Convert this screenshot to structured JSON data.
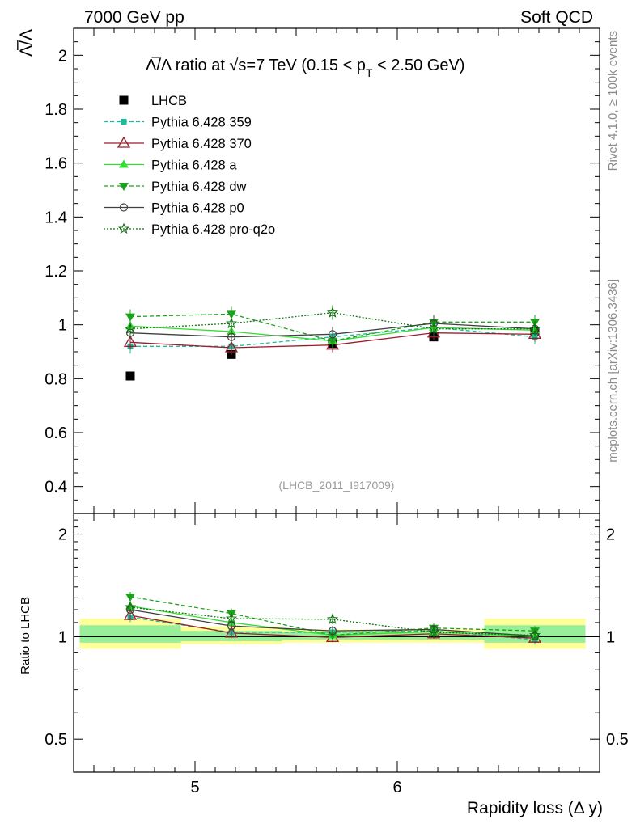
{
  "header": {
    "left": "7000 GeV pp",
    "right": "Soft QCD"
  },
  "side_labels": {
    "rivet": "Rivet 4.1.0, ≥ 100k events",
    "mcplots": "mcplots.cern.ch [arXiv:1306.3436]"
  },
  "colors": {
    "lhcb": "#000000",
    "p359": "#1abc9c",
    "p370": "#9b1c2c",
    "pa": "#33dd33",
    "pdw": "#1aa31a",
    "pp0": "#404040",
    "ppro": "#107010",
    "band_outer": "#ffff99",
    "band_inner": "#99ee99"
  },
  "chart_data": {
    "type": "line",
    "title": "Λ̅/Λ ratio at √s=7 TeV (0.15 < p_T < 2.50 GeV)",
    "title_parts": {
      "main": "Λ̅/Λ ratio at √s=7 TeV (0.15 < p",
      "sub": "T",
      "tail": " < 2.50 GeV)"
    },
    "analysis_id": "(LHCB_2011_I917009)",
    "ylabel_main": "Λ̅/Λ",
    "ylabel_ratio": "Ratio to LHCB",
    "xlabel": "Rapidity loss (Δ y)",
    "xlim": [
      4.4,
      7.0
    ],
    "ylim_main": [
      0.3,
      2.1
    ],
    "ylim_ratio": [
      0.4,
      2.3
    ],
    "x_ticks": [
      5,
      6
    ],
    "x_tick_labels": [
      "5",
      "6"
    ],
    "y_ticks_main": [
      0.4,
      0.6,
      0.8,
      1,
      1.2,
      1.4,
      1.6,
      1.8,
      2
    ],
    "y_tick_labels_main": [
      "0.4",
      "0.6",
      "0.8",
      "1",
      "1.2",
      "1.4",
      "1.6",
      "1.8",
      "2"
    ],
    "y_ticks_ratio": [
      0.5,
      1,
      2
    ],
    "y_tick_labels_ratio": [
      "0.5",
      "1",
      "2"
    ],
    "x": [
      4.68,
      5.18,
      5.68,
      6.18,
      6.68
    ],
    "bin_edges": [
      4.43,
      4.93,
      5.43,
      5.93,
      6.43,
      6.93
    ],
    "band_outer": [
      [
        0.92,
        1.13
      ],
      [
        0.95,
        1.07
      ],
      [
        0.96,
        1.05
      ],
      [
        0.96,
        1.05
      ],
      [
        0.92,
        1.13
      ]
    ],
    "band_inner": [
      [
        0.96,
        1.08
      ],
      [
        0.97,
        1.04
      ],
      [
        0.98,
        1.03
      ],
      [
        0.98,
        1.03
      ],
      [
        0.96,
        1.08
      ]
    ],
    "series": [
      {
        "name": "LHCB",
        "color_key": "lhcb",
        "marker": "square",
        "dash": "none",
        "values": [
          0.81,
          0.89,
          0.93,
          0.955,
          0.975
        ]
      },
      {
        "name": "Pythia 6.428 359",
        "color_key": "p359",
        "marker": "smallsquare",
        "dash": "dashed",
        "values": [
          0.92,
          0.92,
          0.955,
          0.99,
          0.955
        ],
        "ratio": [
          1.14,
          1.03,
          1.03,
          1.04,
          0.98
        ]
      },
      {
        "name": "Pythia 6.428 370",
        "color_key": "p370",
        "marker": "triangle-open",
        "dash": "solid",
        "values": [
          0.935,
          0.915,
          0.925,
          0.97,
          0.965
        ],
        "ratio": [
          1.155,
          1.025,
          0.995,
          1.02,
          0.99
        ]
      },
      {
        "name": "Pythia 6.428 a",
        "color_key": "pa",
        "marker": "triangle-up",
        "dash": "solid",
        "values": [
          0.995,
          0.975,
          0.94,
          0.99,
          0.98
        ],
        "ratio": [
          1.23,
          1.1,
          1.01,
          1.035,
          1.0
        ]
      },
      {
        "name": "Pythia 6.428 dw",
        "color_key": "pdw",
        "marker": "triangle-down",
        "dash": "dashed",
        "values": [
          1.03,
          1.04,
          0.94,
          1.01,
          1.01
        ],
        "ratio": [
          1.31,
          1.17,
          1.01,
          1.06,
          1.04
        ]
      },
      {
        "name": "Pythia 6.428 p0",
        "color_key": "pp0",
        "marker": "circle-open",
        "dash": "solid",
        "values": [
          0.97,
          0.955,
          0.965,
          1.005,
          0.985
        ],
        "ratio": [
          1.2,
          1.075,
          1.04,
          1.05,
          1.005
        ]
      },
      {
        "name": "Pythia 6.428 pro-q2o",
        "color_key": "ppro",
        "marker": "star",
        "dash": "dotted",
        "values": [
          0.985,
          1.005,
          1.045,
          0.985,
          0.985
        ],
        "ratio": [
          1.22,
          1.13,
          1.125,
          1.03,
          1.01
        ]
      }
    ]
  }
}
